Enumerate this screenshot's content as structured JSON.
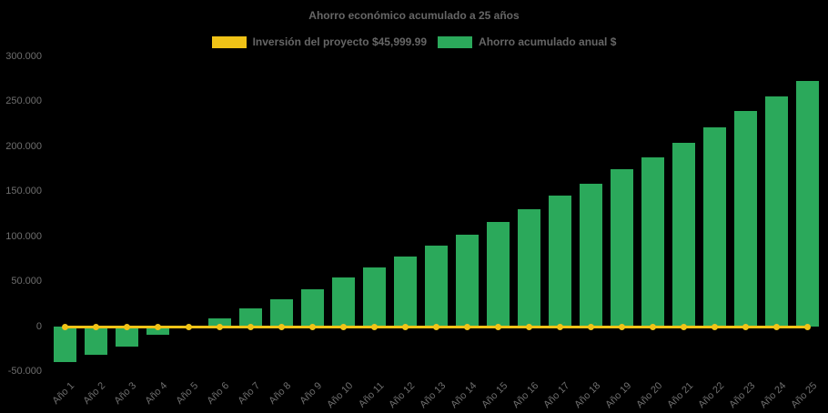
{
  "chart_data": {
    "type": "bar",
    "title": "Ahorro económico acumulado a 25 años",
    "legend_position": "top",
    "grid": false,
    "background": "#000000",
    "ylim": [
      -50000,
      300000
    ],
    "categories": [
      "Año 1",
      "Año 2",
      "Año 3",
      "Año 4",
      "Año 5",
      "Año 6",
      "Año 7",
      "Año 8",
      "Año 9",
      "Año 10",
      "Año 11",
      "Año 12",
      "Año 13",
      "Año 14",
      "Año 15",
      "Año 16",
      "Año 17",
      "Año 18",
      "Año 19",
      "Año 20",
      "Año 21",
      "Año 22",
      "Año 23",
      "Año 24",
      "Año 25"
    ],
    "series": [
      {
        "name": "Inversión del proyecto $45,999.99",
        "type": "line",
        "color": "#F0C317",
        "values": [
          0,
          0,
          0,
          0,
          0,
          0,
          0,
          0,
          0,
          0,
          0,
          0,
          0,
          0,
          0,
          0,
          0,
          0,
          0,
          0,
          0,
          0,
          0,
          0,
          0
        ]
      },
      {
        "name": "Ahorro acumulado anual $",
        "type": "bar",
        "color": "#2BA95B",
        "values": [
          -40000,
          -32000,
          -22500,
          -9000,
          500,
          9000,
          19500,
          30000,
          41000,
          54000,
          65500,
          77000,
          90000,
          101500,
          115500,
          130000,
          145000,
          158000,
          174000,
          187500,
          203500,
          221000,
          239000,
          255500,
          272000
        ]
      }
    ],
    "y_axis": {
      "ticks": [
        {
          "value": 300000,
          "label": "300.000"
        },
        {
          "value": 250000,
          "label": "250.000"
        },
        {
          "value": 200000,
          "label": "200.000"
        },
        {
          "value": 150000,
          "label": "150.000"
        },
        {
          "value": 100000,
          "label": "100.000"
        },
        {
          "value": 50000,
          "label": "50.000"
        },
        {
          "value": 0,
          "label": "0"
        },
        {
          "value": -50000,
          "label": "-50.000"
        }
      ]
    },
    "colors": {
      "text": "#666666",
      "axis_text": "#6E6E6E"
    }
  }
}
